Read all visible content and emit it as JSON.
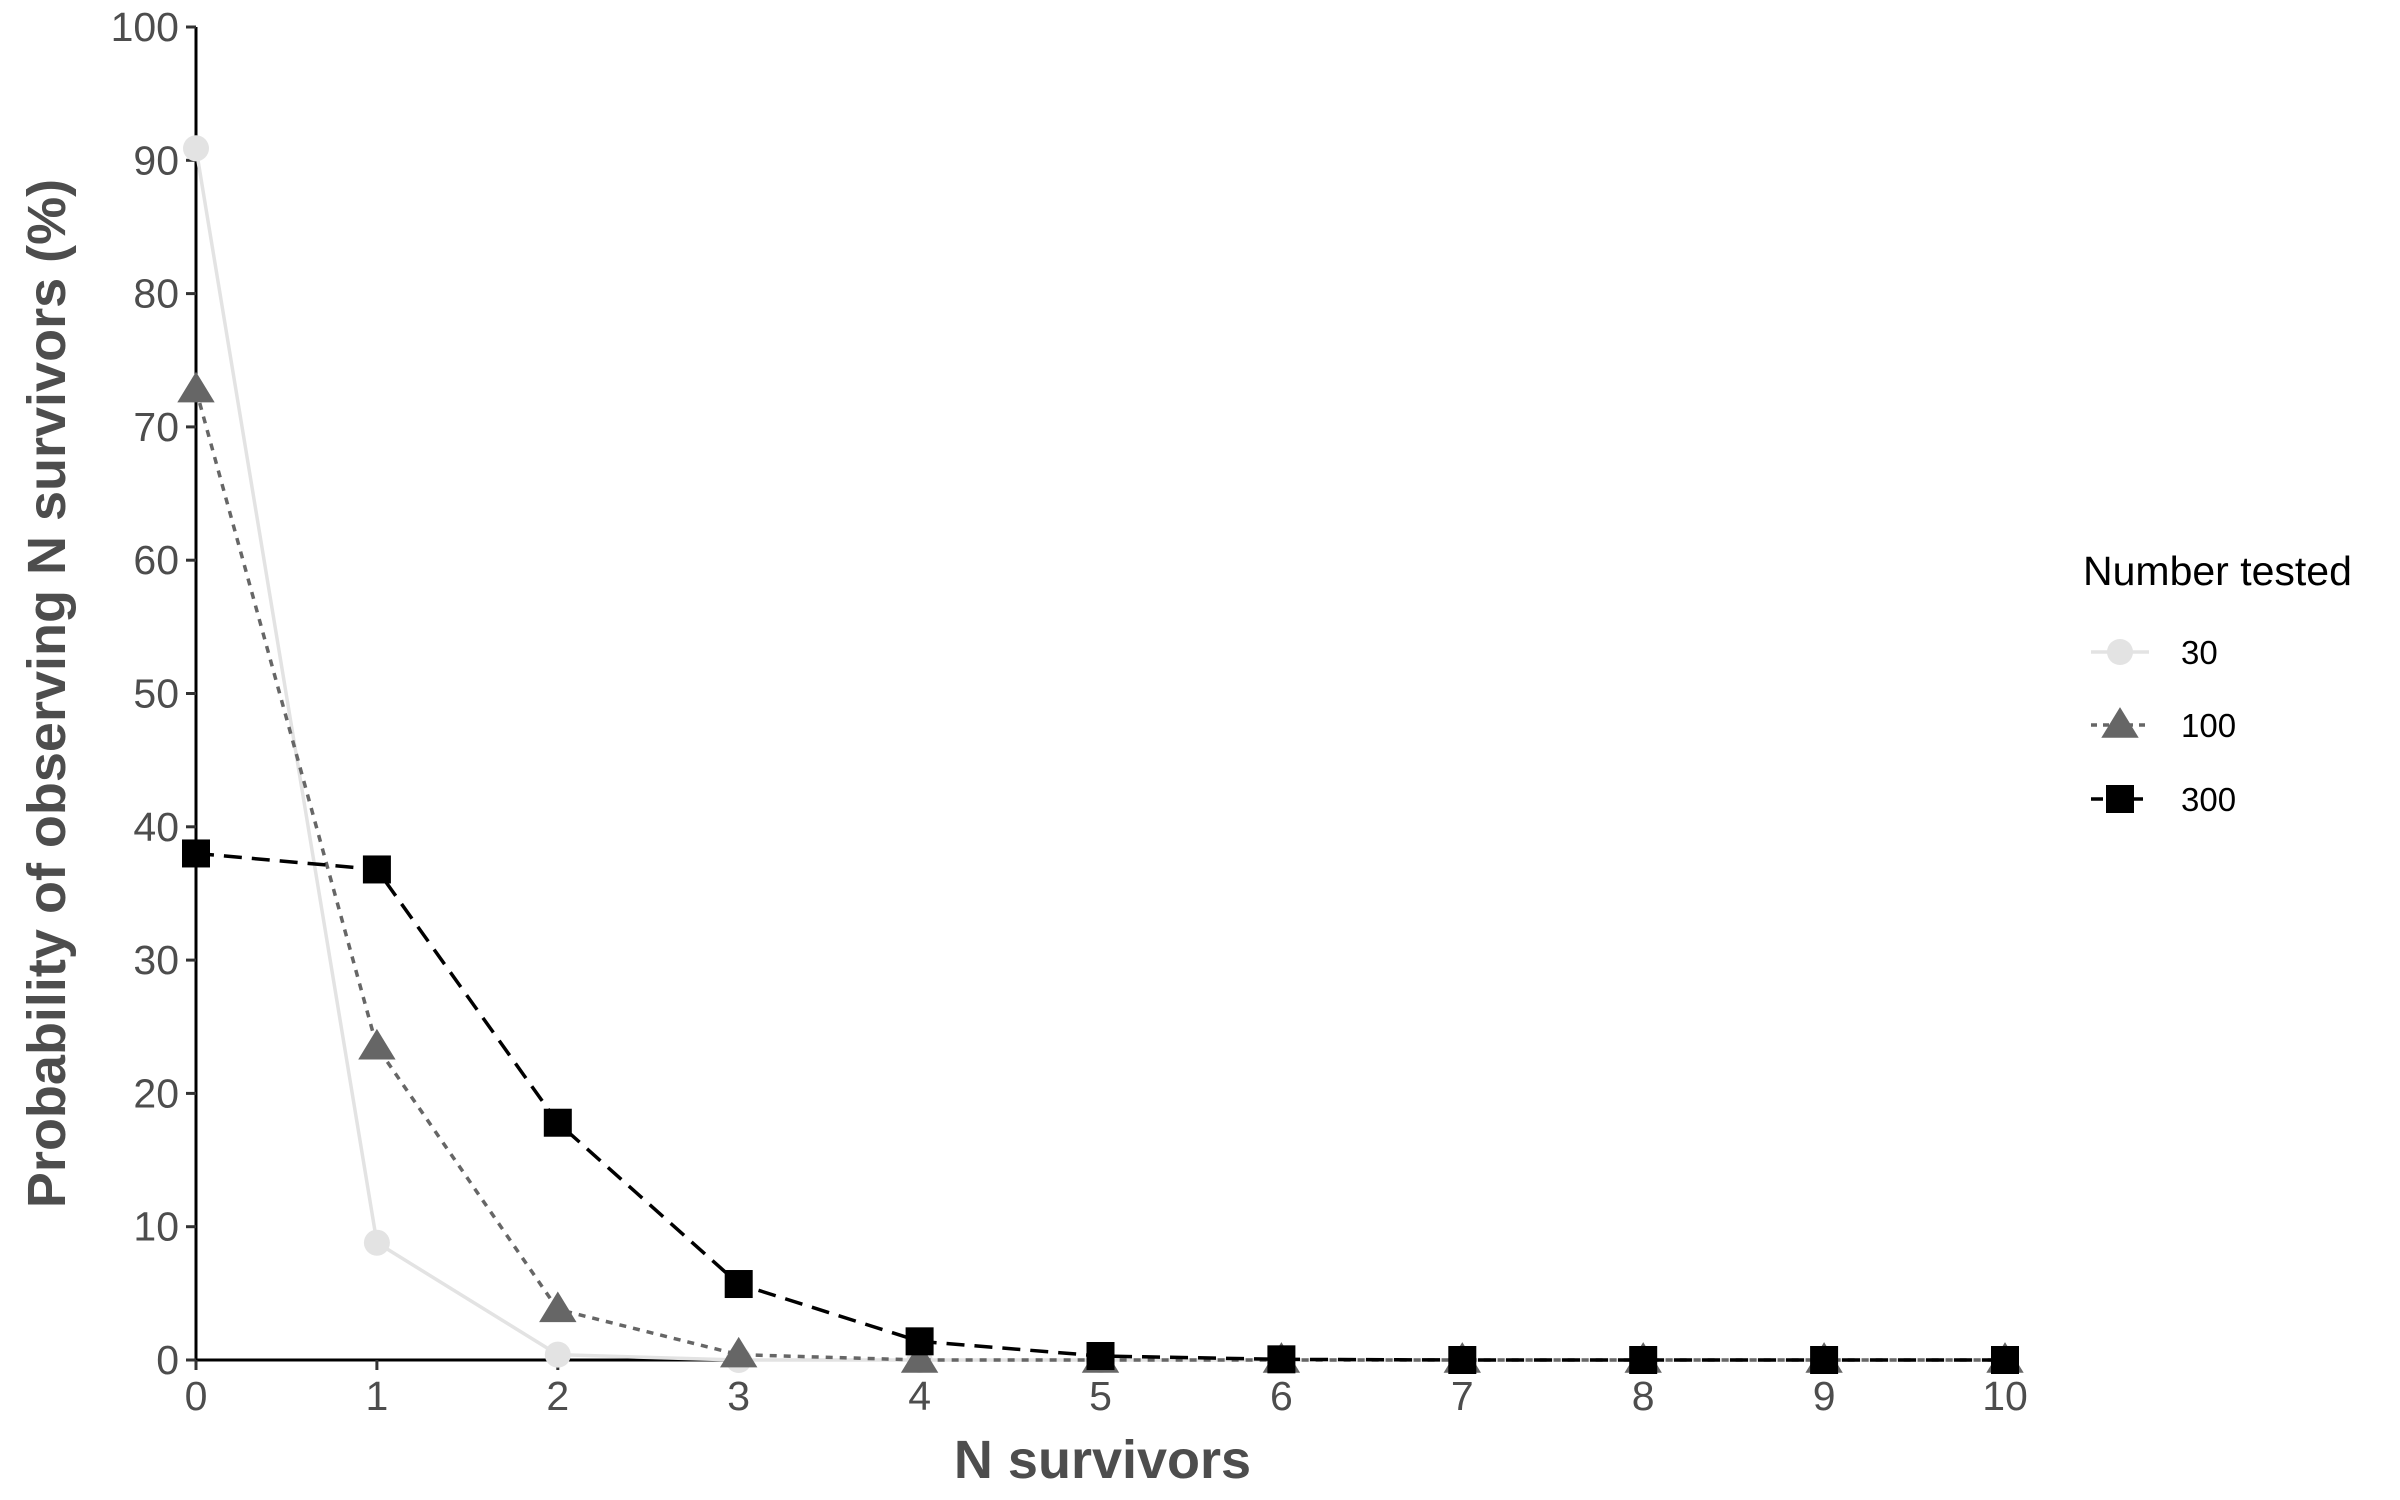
{
  "chart_data": {
    "type": "line",
    "xlabel": "N survivors",
    "ylabel": "Probability of observing N survivors (%)",
    "xlim": [
      0,
      10
    ],
    "ylim": [
      0,
      100
    ],
    "x": [
      0,
      1,
      2,
      3,
      4,
      5,
      6,
      7,
      8,
      9,
      10
    ],
    "x_ticks": [
      "0",
      "1",
      "2",
      "3",
      "4",
      "5",
      "6",
      "7",
      "8",
      "9",
      "10"
    ],
    "y_ticks": [
      "0",
      "10",
      "20",
      "30",
      "40",
      "50",
      "60",
      "70",
      "80",
      "90",
      "100"
    ],
    "grid": false,
    "legend": {
      "title": "Number tested",
      "position": "right"
    },
    "series": [
      {
        "name": "30",
        "color": "#e3e3e3",
        "line_style": "solid",
        "marker": "circle",
        "values": [
          90.9,
          8.8,
          0.4,
          0.0,
          0.0,
          0.0,
          0.0,
          0.0,
          0.0,
          0.0,
          0.0
        ]
      },
      {
        "name": "100",
        "color": "#666666",
        "line_style": "dotted",
        "marker": "triangle",
        "values": [
          72.8,
          23.5,
          3.8,
          0.4,
          0.0,
          0.0,
          0.0,
          0.0,
          0.0,
          0.0,
          0.0
        ]
      },
      {
        "name": "300",
        "color": "#000000",
        "line_style": "dashed",
        "marker": "square",
        "values": [
          38.0,
          36.8,
          17.8,
          5.7,
          1.4,
          0.3,
          0.05,
          0.0,
          0.0,
          0.0,
          0.0
        ]
      }
    ]
  }
}
